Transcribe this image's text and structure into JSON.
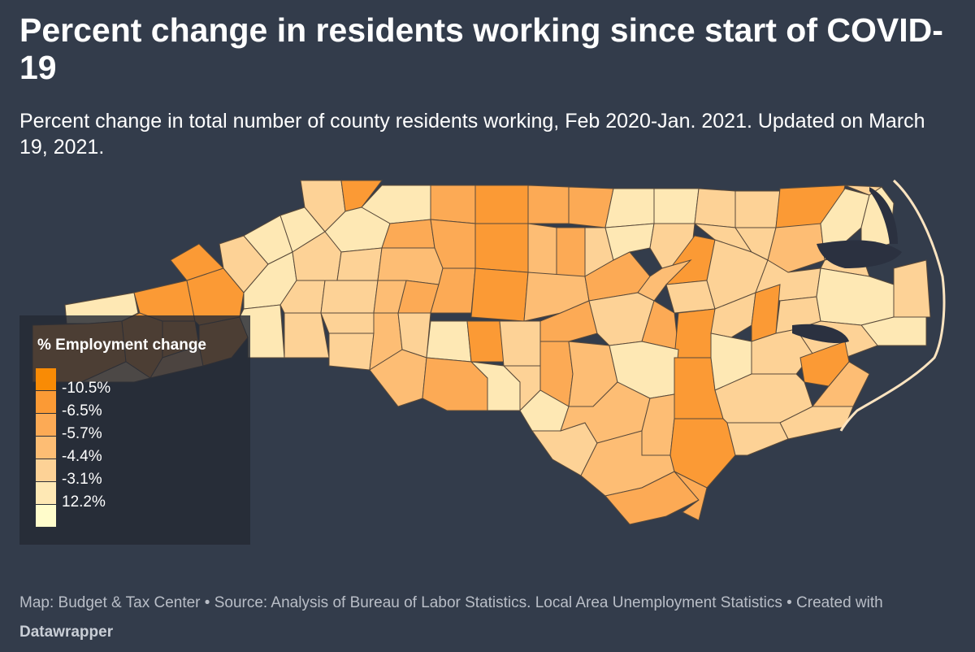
{
  "title": "Percent change in residents working since start of COVID-19",
  "subtitle": "Percent change in total number of county residents working, Feb 2020-Jan. 2021. Updated on March 19, 2021.",
  "legend": {
    "title": "% Employment change",
    "labels": [
      "-10.5%",
      "-6.5%",
      "-5.7%",
      "-4.4%",
      "-3.1%",
      "12.2%"
    ],
    "colors": [
      "#f98b05",
      "#fb9a35",
      "#fcaa55",
      "#fdbd74",
      "#fdd296",
      "#fee8b4",
      "#fffccb"
    ]
  },
  "footer": {
    "text": "Map: Budget & Tax Center • Source: Analysis of Bureau of Labor Statistics. Local Area Unemployment Statistics • Created with ",
    "brand": "Datawrapper"
  },
  "colors": {
    "background": "#333c4b",
    "water": "#2b3140",
    "county_border": "#5a4a3a",
    "coast": "#fde4c0"
  }
}
